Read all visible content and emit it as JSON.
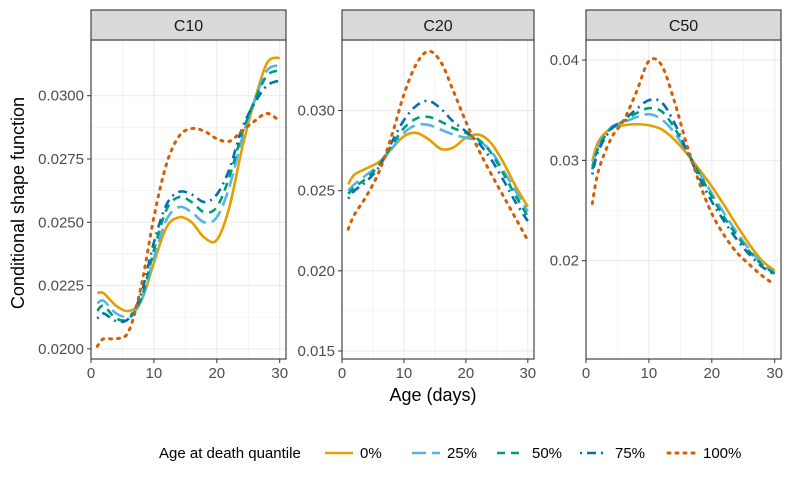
{
  "chart_data": {
    "type": "line",
    "xlabel": "Age (days)",
    "ylabel": "Conditional shape function",
    "legend": {
      "title": "Age at death quantile",
      "position": "bottom",
      "entries": [
        "0%",
        "25%",
        "50%",
        "75%",
        "100%"
      ]
    },
    "series_styles": [
      {
        "name": "0%",
        "color": "#E69F00",
        "dash": "solid"
      },
      {
        "name": "25%",
        "color": "#56B4E9",
        "dash": "longdash"
      },
      {
        "name": "50%",
        "color": "#009E73",
        "dash": "dashed"
      },
      {
        "name": "75%",
        "color": "#0072B2",
        "dash": "dotdash"
      },
      {
        "name": "100%",
        "color": "#D55E00",
        "dash": "dotted"
      }
    ],
    "panels": [
      {
        "title": "C10",
        "xlim": [
          0,
          31
        ],
        "ylim": [
          0.0196,
          0.0322
        ],
        "xticks": [
          0,
          10,
          20,
          30
        ],
        "xtick_labels": [
          "0",
          "10",
          "20",
          "30"
        ],
        "yticks": [
          0.02,
          0.0225,
          0.025,
          0.0275,
          0.03
        ],
        "ytick_labels": [
          "0.0200",
          "0.0225",
          "0.0250",
          "0.0275",
          "0.0300"
        ],
        "x": [
          1,
          2,
          4,
          6,
          8,
          10,
          12,
          14,
          16,
          18,
          20,
          22,
          24,
          26,
          28,
          30
        ],
        "series": [
          {
            "name": "0%",
            "values": [
              0.0222,
              0.0222,
              0.0217,
              0.0215,
              0.0219,
              0.0234,
              0.0248,
              0.0252,
              0.025,
              0.0244,
              0.0243,
              0.0256,
              0.0279,
              0.0298,
              0.0313,
              0.0315
            ]
          },
          {
            "name": "25%",
            "values": [
              0.0218,
              0.0219,
              0.0214,
              0.0213,
              0.0219,
              0.0236,
              0.0251,
              0.0256,
              0.0254,
              0.025,
              0.0252,
              0.0264,
              0.0283,
              0.0298,
              0.031,
              0.0312
            ]
          },
          {
            "name": "50%",
            "values": [
              0.0215,
              0.0217,
              0.0212,
              0.0212,
              0.022,
              0.0239,
              0.0255,
              0.026,
              0.0258,
              0.0254,
              0.0256,
              0.0268,
              0.0285,
              0.0298,
              0.0308,
              0.031
            ]
          },
          {
            "name": "75%",
            "values": [
              0.0212,
              0.0214,
              0.0211,
              0.0212,
              0.0222,
              0.0242,
              0.0257,
              0.0262,
              0.0261,
              0.0258,
              0.0261,
              0.0271,
              0.0287,
              0.0297,
              0.0304,
              0.0306
            ]
          },
          {
            "name": "100%",
            "values": [
              0.0201,
              0.0204,
              0.0204,
              0.0207,
              0.0225,
              0.0252,
              0.0273,
              0.0284,
              0.0287,
              0.0286,
              0.0283,
              0.0282,
              0.0286,
              0.029,
              0.0293,
              0.029
            ]
          }
        ]
      },
      {
        "title": "C20",
        "xlim": [
          0,
          31
        ],
        "ylim": [
          0.0145,
          0.0344
        ],
        "xticks": [
          0,
          10,
          20,
          30
        ],
        "xtick_labels": [
          "0",
          "10",
          "20",
          "30"
        ],
        "yticks": [
          0.015,
          0.02,
          0.025,
          0.03
        ],
        "ytick_labels": [
          "0.015",
          "0.020",
          "0.025",
          "0.030"
        ],
        "x": [
          1,
          2,
          4,
          6,
          8,
          10,
          12,
          14,
          16,
          18,
          20,
          22,
          24,
          26,
          28,
          30
        ],
        "series": [
          {
            "name": "0%",
            "values": [
              0.0254,
              0.026,
              0.0264,
              0.0268,
              0.0276,
              0.0284,
              0.0286,
              0.0282,
              0.0276,
              0.0277,
              0.0283,
              0.0285,
              0.028,
              0.0268,
              0.0253,
              0.024
            ]
          },
          {
            "name": "25%",
            "values": [
              0.025,
              0.0254,
              0.026,
              0.0266,
              0.0276,
              0.0286,
              0.0291,
              0.0291,
              0.0288,
              0.0285,
              0.0283,
              0.0281,
              0.0275,
              0.0263,
              0.025,
              0.0237
            ]
          },
          {
            "name": "50%",
            "values": [
              0.0248,
              0.0252,
              0.0258,
              0.0266,
              0.0278,
              0.0289,
              0.0295,
              0.0296,
              0.0293,
              0.0289,
              0.0286,
              0.0282,
              0.0274,
              0.0261,
              0.0247,
              0.0234
            ]
          },
          {
            "name": "75%",
            "values": [
              0.0245,
              0.025,
              0.0256,
              0.0265,
              0.028,
              0.0294,
              0.0303,
              0.0306,
              0.0301,
              0.0293,
              0.0287,
              0.028,
              0.027,
              0.0257,
              0.0243,
              0.0231
            ]
          },
          {
            "name": "100%",
            "values": [
              0.0226,
              0.0235,
              0.0247,
              0.0262,
              0.0284,
              0.031,
              0.0329,
              0.0337,
              0.033,
              0.0312,
              0.0293,
              0.0276,
              0.0261,
              0.0247,
              0.0233,
              0.0219
            ]
          }
        ]
      },
      {
        "title": "C50",
        "xlim": [
          0,
          31
        ],
        "ylim": [
          0.0102,
          0.042
        ],
        "xticks": [
          0,
          10,
          20,
          30
        ],
        "xtick_labels": [
          "0",
          "10",
          "20",
          "30"
        ],
        "yticks": [
          0.02,
          0.03,
          0.04
        ],
        "ytick_labels": [
          "0.02",
          "0.03",
          "0.04"
        ],
        "x": [
          1,
          2,
          4,
          6,
          8,
          10,
          12,
          14,
          16,
          18,
          20,
          22,
          24,
          26,
          28,
          30
        ],
        "series": [
          {
            "name": "0%",
            "values": [
              0.0299,
              0.0319,
              0.0332,
              0.0335,
              0.0336,
              0.0335,
              0.0331,
              0.0321,
              0.0307,
              0.0291,
              0.0274,
              0.0255,
              0.0235,
              0.0216,
              0.02,
              0.019
            ]
          },
          {
            "name": "25%",
            "values": [
              0.0294,
              0.0315,
              0.0333,
              0.0338,
              0.0343,
              0.0346,
              0.0341,
              0.0328,
              0.0309,
              0.0288,
              0.0267,
              0.0247,
              0.0228,
              0.0211,
              0.0197,
              0.0188
            ]
          },
          {
            "name": "50%",
            "values": [
              0.0291,
              0.0313,
              0.0332,
              0.0339,
              0.0347,
              0.0352,
              0.0349,
              0.0333,
              0.031,
              0.0287,
              0.0264,
              0.0243,
              0.0225,
              0.0209,
              0.0196,
              0.0187
            ]
          },
          {
            "name": "75%",
            "values": [
              0.0286,
              0.031,
              0.0331,
              0.034,
              0.0351,
              0.036,
              0.0358,
              0.0338,
              0.031,
              0.0283,
              0.0259,
              0.0239,
              0.0221,
              0.0206,
              0.0194,
              0.0186
            ]
          },
          {
            "name": "100%",
            "values": [
              0.0257,
              0.029,
              0.0322,
              0.034,
              0.0368,
              0.0399,
              0.0395,
              0.036,
              0.0316,
              0.0278,
              0.0247,
              0.0225,
              0.0208,
              0.0196,
              0.0185,
              0.0176
            ]
          }
        ]
      }
    ]
  }
}
